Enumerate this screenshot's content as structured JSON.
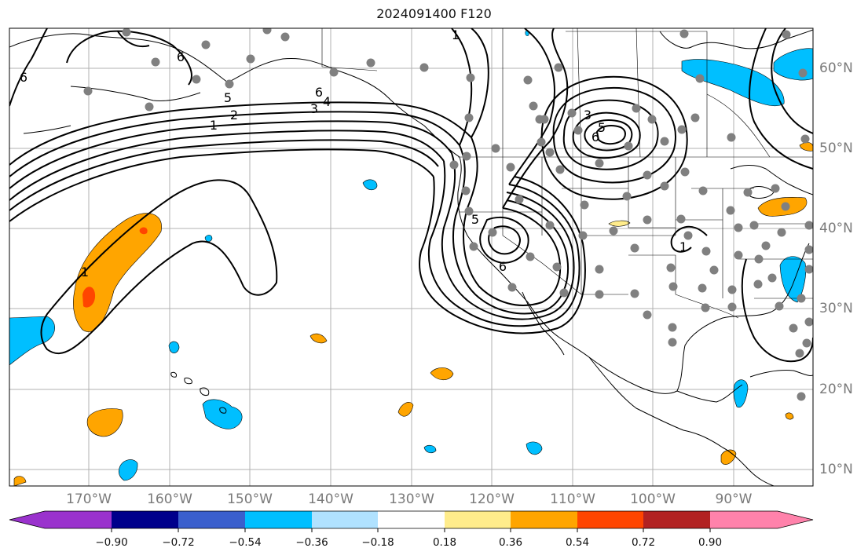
{
  "title": "2024091400 F120",
  "longitude_labels": [
    "170°W",
    "160°W",
    "150°W",
    "140°W",
    "130°W",
    "120°W",
    "110°W",
    "100°W",
    "90°W"
  ],
  "latitude_labels": [
    "60°N",
    "50°N",
    "40°N",
    "30°N",
    "20°N",
    "10°N"
  ],
  "contour_labels": [
    "1",
    "2",
    "3",
    "4",
    "5",
    "6",
    "6",
    "6",
    "1",
    "3",
    "5",
    "6",
    "1",
    "5",
    "6",
    "1"
  ],
  "colorbar": {
    "ticks": [
      "−0.90",
      "−0.72",
      "−0.54",
      "−0.36",
      "−0.18",
      "0.18",
      "0.36",
      "0.54",
      "0.72",
      "0.90"
    ],
    "colors": [
      "#9a32cd",
      "#00008b",
      "#3a5fcd",
      "#00bfff",
      "#b0e2ff",
      "#ffffff",
      "#ffec8b",
      "#ffa500",
      "#ff4500",
      "#b22222",
      "#ff82ab"
    ]
  },
  "colors": {
    "grid": "#b0b0b0",
    "station": "#808080",
    "contour": "#000000",
    "axis_label": "#7a7a7a"
  }
}
